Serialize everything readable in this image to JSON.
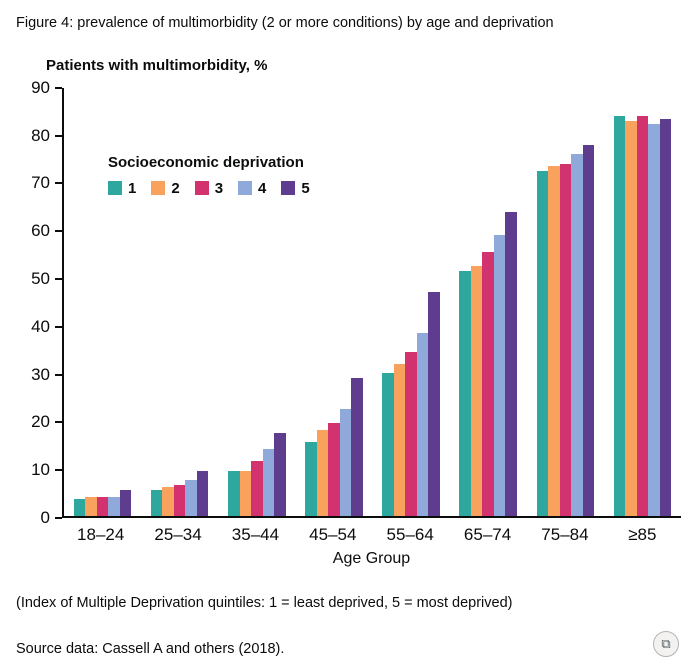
{
  "figure": {
    "title": "Figure 4: prevalence of multimorbidity (2 or more conditions) by age and deprivation",
    "y_axis_title": "Patients with multimorbidity, %",
    "x_axis_title": "Age Group",
    "legend_title": "Socioeconomic deprivation",
    "footnote": "(Index of Multiple Deprivation quintiles: 1 = least deprived, 5 = most deprived)",
    "source": "Source data: Cassell A and others (2018)."
  },
  "icons": {
    "export_glyph": "⧉"
  },
  "chart_data": {
    "type": "bar",
    "title": "Prevalence of multimorbidity (2 or more conditions) by age and deprivation",
    "xlabel": "Age Group",
    "ylabel": "Patients with multimorbidity, %",
    "categories": [
      "18–24",
      "25–34",
      "35–44",
      "45–54",
      "55–64",
      "65–74",
      "75–84",
      "≥85"
    ],
    "series": [
      {
        "name": "1",
        "color": "#2ea89f",
        "values": [
          3.5,
          5.5,
          9.5,
          15.5,
          30,
          51.5,
          72.5,
          84
        ]
      },
      {
        "name": "2",
        "color": "#f8a25d",
        "values": [
          4,
          6,
          9.5,
          18,
          32,
          52.5,
          73.5,
          83
        ]
      },
      {
        "name": "3",
        "color": "#d2336e",
        "values": [
          4,
          6.5,
          11.5,
          19.5,
          34.5,
          55.5,
          74,
          84
        ]
      },
      {
        "name": "4",
        "color": "#8fa9db",
        "values": [
          4,
          7.5,
          14,
          22.5,
          38.5,
          59,
          76,
          82.5
        ]
      },
      {
        "name": "5",
        "color": "#5e3c8e",
        "values": [
          5.5,
          9.5,
          17.5,
          29,
          47,
          64,
          78,
          83.5
        ]
      }
    ],
    "ylim": [
      0,
      90
    ],
    "ytick_step": 10,
    "grid": false,
    "legend_title": "Socioeconomic deprivation",
    "legend_position": "inside-top-left"
  }
}
